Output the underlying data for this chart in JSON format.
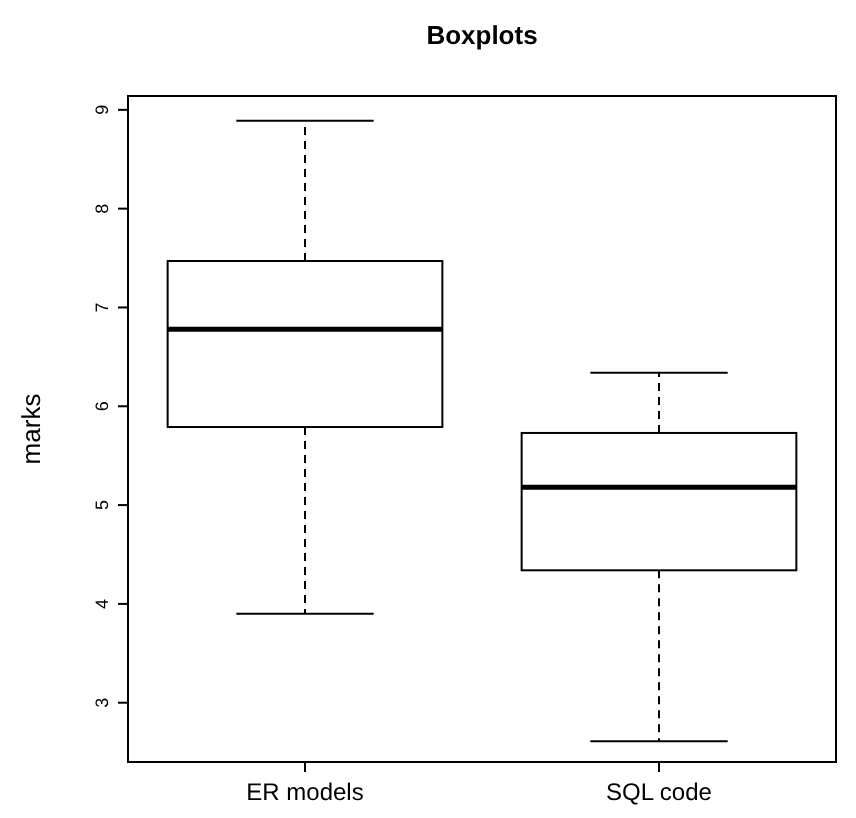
{
  "chart_data": {
    "type": "box",
    "title": "Boxplots",
    "ylabel": "marks",
    "categories": [
      "ER models",
      "SQL code"
    ],
    "boxes": [
      {
        "low": 3.9,
        "q1": 5.79,
        "median": 6.78,
        "q3": 7.47,
        "high": 8.89
      },
      {
        "low": 2.61,
        "q1": 4.34,
        "median": 5.18,
        "q3": 5.73,
        "high": 6.34
      }
    ],
    "ylim": [
      2.4,
      9.14
    ],
    "yticks": [
      3,
      4,
      5,
      6,
      7,
      8,
      9
    ],
    "grid": false
  }
}
